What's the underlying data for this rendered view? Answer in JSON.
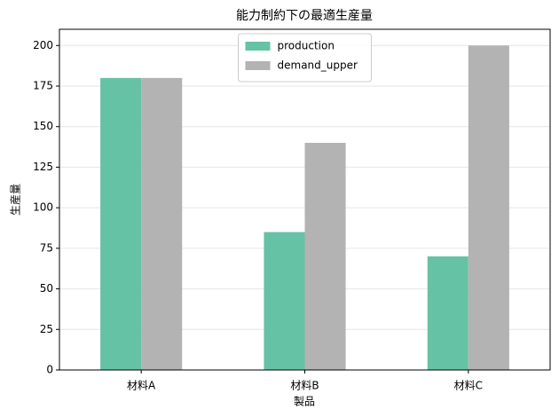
{
  "chart_data": {
    "type": "bar",
    "title": "能力制約下の最適生産量",
    "x_label": "製品",
    "y_label": "生産量",
    "categories": [
      "材料A",
      "材料B",
      "材料C"
    ],
    "series": [
      {
        "name": "production",
        "color": "#66c2a5",
        "values": [
          180,
          85,
          70
        ]
      },
      {
        "name": "demand_upper",
        "color": "#b3b3b3",
        "values": [
          180,
          140,
          200
        ]
      }
    ],
    "ylim": [
      0,
      210
    ],
    "yticks": [
      0,
      25,
      50,
      75,
      100,
      125,
      150,
      175,
      200
    ],
    "grid": true,
    "legend": "upper center"
  }
}
